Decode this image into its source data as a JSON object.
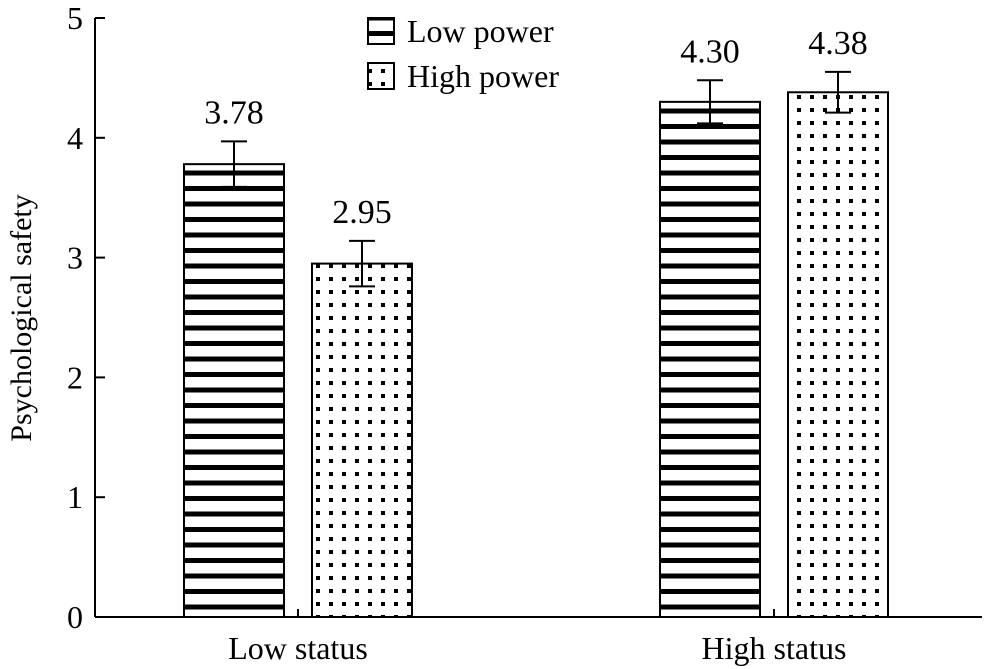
{
  "chart_data": {
    "type": "bar",
    "title": "",
    "xlabel": "",
    "ylabel": "Psychological safety",
    "ylim": [
      0,
      5
    ],
    "yticks": [
      0,
      1,
      2,
      3,
      4,
      5
    ],
    "grid": false,
    "legend_position": "top-center",
    "categories": [
      "Low status",
      "High status"
    ],
    "series": [
      {
        "name": "Low power",
        "pattern": "horizontal-stripes",
        "values": [
          3.78,
          4.3
        ],
        "error": [
          0.19,
          0.18
        ]
      },
      {
        "name": "High power",
        "pattern": "dots",
        "values": [
          2.95,
          4.38
        ],
        "error": [
          0.19,
          0.17
        ]
      }
    ],
    "data_labels": [
      [
        "3.78",
        "4.30"
      ],
      [
        "2.95",
        "4.38"
      ]
    ]
  }
}
